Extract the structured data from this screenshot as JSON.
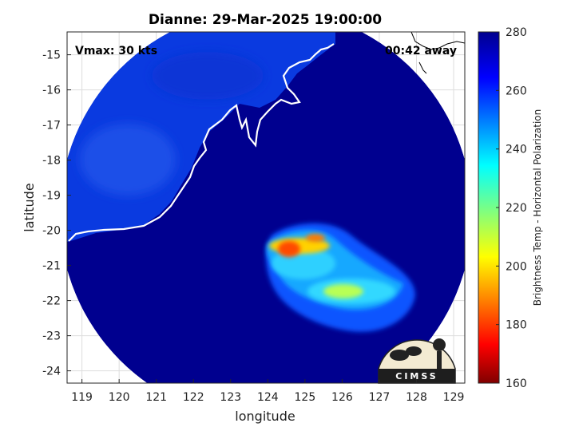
{
  "chart_data": {
    "type": "heatmap",
    "title": "Dianne: 29-Mar-2025 19:00:00",
    "xlabel": "longitude",
    "ylabel": "latitude",
    "xlim": [
      118.6,
      129.3
    ],
    "ylim": [
      -24.35,
      -14.35
    ],
    "xticks": [
      119,
      120,
      121,
      122,
      123,
      124,
      125,
      126,
      127,
      128,
      129
    ],
    "yticks": [
      -15,
      -16,
      -17,
      -18,
      -19,
      -20,
      -21,
      -22,
      -23,
      -24
    ],
    "grid": true,
    "annotations": {
      "left": "Vmax: 30 kts",
      "right": "00:42 away"
    },
    "colorbar": {
      "label": "Brightness Temp - Horizontal Polarization",
      "min": 160,
      "max": 280,
      "ticks": [
        280,
        260,
        240,
        220,
        200,
        180,
        160
      ],
      "colormap": "jet"
    },
    "swath": {
      "center_lon": 123.95,
      "center_lat": -19.55,
      "radius_deg": 5.55
    },
    "features": [
      {
        "name": "inner-core",
        "lon": 124.6,
        "lat": -21.1,
        "value": 230
      },
      {
        "name": "deep-convection",
        "lon": 124.45,
        "lat": -20.25,
        "value": 195
      }
    ],
    "logo_text": "CIMSS"
  },
  "colors": {
    "background_tb": "#00008f",
    "land_tb": "#0a37e0",
    "coastline": "#ffffff"
  }
}
